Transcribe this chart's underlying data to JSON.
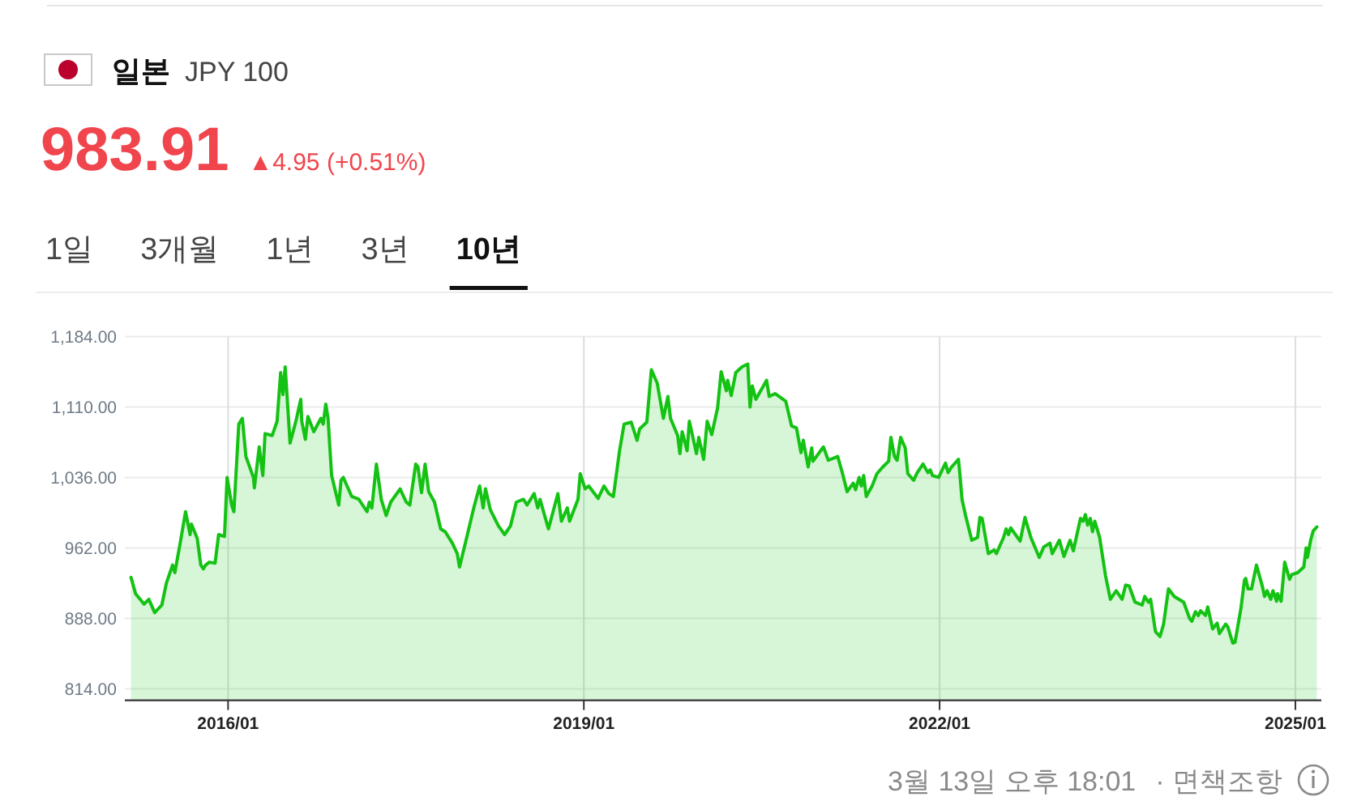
{
  "chart_data": {
    "type": "area",
    "title": "일본",
    "subtitle": "JPY 100",
    "annotations": [
      "983.91",
      "▲4.95 (+0.51%)",
      "1일",
      "3개월",
      "1년",
      "3년",
      "10년",
      "3월 13일 오후 18:01",
      "· 면책조항"
    ],
    "x": [
      "2015-03-08",
      "2015-03-22",
      "2015-04-17",
      "2015-05-02",
      "2015-05-20",
      "2015-06-11",
      "2015-06-25",
      "2015-07-14",
      "2015-07-21",
      "2015-08-08",
      "2015-08-23",
      "2015-09-06",
      "2015-09-10",
      "2015-09-28",
      "2015-10-09",
      "2015-10-17",
      "2015-10-24",
      "2015-11-04",
      "2015-11-22",
      "2015-12-03",
      "2015-12-21",
      "2015-12-29",
      "2016-01-12",
      "2016-01-19",
      "2016-02-03",
      "2016-02-14",
      "2016-02-25",
      "2016-03-19",
      "2016-03-22",
      "2016-04-06",
      "2016-04-17",
      "2016-04-24",
      "2016-05-16",
      "2016-05-31",
      "2016-06-11",
      "2016-06-18",
      "2016-06-25",
      "2016-07-10",
      "2016-07-28",
      "2016-08-12",
      "2016-08-15",
      "2016-08-26",
      "2016-09-03",
      "2016-09-21",
      "2016-10-13",
      "2016-10-20",
      "2016-10-28",
      "2016-11-04",
      "2016-11-15",
      "2016-12-07",
      "2016-12-14",
      "2016-12-21",
      "2017-01-16",
      "2017-02-07",
      "2017-03-04",
      "2017-03-11",
      "2017-03-19",
      "2017-04-02",
      "2017-04-17",
      "2017-05-02",
      "2017-05-16",
      "2017-06-14",
      "2017-07-03",
      "2017-07-14",
      "2017-08-01",
      "2017-08-08",
      "2017-08-19",
      "2017-08-30",
      "2017-09-10",
      "2017-09-28",
      "2017-10-17",
      "2017-10-31",
      "2017-11-22",
      "2017-12-07",
      "2017-12-14",
      "2018-01-01",
      "2018-01-27",
      "2018-02-14",
      "2018-02-25",
      "2018-03-04",
      "2018-03-19",
      "2018-04-13",
      "2018-05-02",
      "2018-05-20",
      "2018-06-07",
      "2018-06-29",
      "2018-07-10",
      "2018-08-01",
      "2018-08-12",
      "2018-08-19",
      "2018-09-14",
      "2018-10-13",
      "2018-10-24",
      "2018-11-11",
      "2018-11-18",
      "2018-12-14",
      "2018-12-21",
      "2019-01-05",
      "2019-01-16",
      "2019-02-14",
      "2019-03-04",
      "2019-03-19",
      "2019-04-02",
      "2019-04-21",
      "2019-05-05",
      "2019-05-27",
      "2019-06-14",
      "2019-06-22",
      "2019-07-14",
      "2019-07-28",
      "2019-08-15",
      "2019-09-03",
      "2019-09-17",
      "2019-09-25",
      "2019-10-17",
      "2019-10-24",
      "2019-10-31",
      "2019-11-15",
      "2019-11-22",
      "2019-12-14",
      "2019-12-21",
      "2020-01-05",
      "2020-01-16",
      "2020-01-30",
      "2020-02-17",
      "2020-02-28",
      "2020-03-15",
      "2020-03-19",
      "2020-03-30",
      "2020-04-13",
      "2020-05-02",
      "2020-05-20",
      "2020-05-27",
      "2020-06-03",
      "2020-06-14",
      "2020-07-17",
      "2020-07-25",
      "2020-08-12",
      "2020-09-14",
      "2020-10-02",
      "2020-10-17",
      "2020-10-31",
      "2020-11-07",
      "2020-11-22",
      "2020-12-03",
      "2020-12-07",
      "2021-01-08",
      "2021-01-23",
      "2021-02-21",
      "2021-03-08",
      "2021-03-22",
      "2021-04-10",
      "2021-04-17",
      "2021-04-28",
      "2021-05-05",
      "2021-05-12",
      "2021-05-20",
      "2021-06-07",
      "2021-06-22",
      "2021-07-10",
      "2021-07-28",
      "2021-08-04",
      "2021-08-15",
      "2021-08-23",
      "2021-09-03",
      "2021-09-17",
      "2021-09-25",
      "2021-10-13",
      "2021-10-24",
      "2021-11-11",
      "2021-11-26",
      "2021-12-03",
      "2021-12-10",
      "2021-12-29",
      "2022-01-19",
      "2022-01-27",
      "2022-02-07",
      "2022-02-28",
      "2022-03-04",
      "2022-03-11",
      "2022-03-22",
      "2022-04-10",
      "2022-04-28",
      "2022-05-05",
      "2022-05-12",
      "2022-05-31",
      "2022-06-18",
      "2022-06-25",
      "2022-07-17",
      "2022-07-25",
      "2022-08-01",
      "2022-08-08",
      "2022-09-06",
      "2022-09-21",
      "2022-10-09",
      "2022-11-04",
      "2022-11-18",
      "2022-12-07",
      "2022-12-14",
      "2023-01-05",
      "2023-01-19",
      "2023-02-07",
      "2023-02-17",
      "2023-03-11",
      "2023-03-19",
      "2023-03-26",
      "2023-04-02",
      "2023-04-10",
      "2023-04-17",
      "2023-04-24",
      "2023-05-09",
      "2023-05-27",
      "2023-06-11",
      "2023-06-29",
      "2023-07-17",
      "2023-07-28",
      "2023-08-08",
      "2023-08-26",
      "2023-09-17",
      "2023-09-25",
      "2023-10-06",
      "2023-10-13",
      "2023-10-28",
      "2023-11-11",
      "2023-11-22",
      "2023-12-07",
      "2023-12-25",
      "2024-01-23",
      "2024-02-10",
      "2024-02-17",
      "2024-02-28",
      "2024-03-08",
      "2024-03-15",
      "2024-03-30",
      "2024-04-06",
      "2024-04-21",
      "2024-05-05",
      "2024-05-12",
      "2024-05-31",
      "2024-06-07",
      "2024-06-22",
      "2024-06-29",
      "2024-07-17",
      "2024-07-28",
      "2024-08-01",
      "2024-08-08",
      "2024-08-19",
      "2024-09-03",
      "2024-09-21",
      "2024-09-28",
      "2024-10-06",
      "2024-10-17",
      "2024-10-24",
      "2024-11-04",
      "2024-11-07",
      "2024-11-18",
      "2024-11-29",
      "2024-12-14",
      "2024-12-21",
      "2025-01-08",
      "2025-01-27",
      "2025-02-03",
      "2025-02-07",
      "2025-02-17",
      "2025-02-25",
      "2025-03-08"
    ],
    "series": [
      {
        "color": "#14c214",
        "values": [
          931,
          914,
          903,
          908,
          894,
          902,
          925,
          944,
          936,
          970,
          1000,
          976,
          987,
          972,
          944,
          940,
          944,
          947,
          946,
          976,
          974,
          1036,
          1007,
          1000,
          1092,
          1098,
          1058,
          1036,
          1025,
          1068,
          1038,
          1082,
          1080,
          1095,
          1146,
          1123,
          1152,
          1072,
          1095,
          1118,
          1095,
          1076,
          1100,
          1084,
          1098,
          1092,
          1113,
          1098,
          1038,
          1007,
          1033,
          1036,
          1016,
          1013,
          1000,
          1010,
          1004,
          1050,
          1013,
          996,
          1010,
          1024,
          1010,
          1007,
          1050,
          1047,
          1020,
          1050,
          1021,
          1010,
          982,
          979,
          967,
          956,
          942,
          967,
          1004,
          1027,
          1004,
          1024,
          1002,
          985,
          976,
          985,
          1010,
          1013,
          1007,
          1019,
          1004,
          1013,
          982,
          1019,
          990,
          1004,
          990,
          1013,
          1040,
          1024,
          1027,
          1014,
          1027,
          1019,
          1016,
          1064,
          1092,
          1094,
          1075,
          1087,
          1094,
          1149,
          1135,
          1098,
          1121,
          1098,
          1080,
          1061,
          1084,
          1064,
          1095,
          1061,
          1078,
          1055,
          1095,
          1081,
          1109,
          1147,
          1127,
          1138,
          1122,
          1146,
          1152,
          1155,
          1110,
          1132,
          1118,
          1138,
          1121,
          1124,
          1116,
          1090,
          1088,
          1062,
          1075,
          1047,
          1067,
          1053,
          1068,
          1054,
          1058,
          1040,
          1021,
          1030,
          1023,
          1036,
          1027,
          1038,
          1016,
          1027,
          1040,
          1047,
          1053,
          1078,
          1058,
          1054,
          1078,
          1067,
          1040,
          1033,
          1041,
          1050,
          1041,
          1044,
          1038,
          1036,
          1051,
          1041,
          1047,
          1055,
          1041,
          1013,
          996,
          970,
          973,
          994,
          993,
          956,
          960,
          956,
          973,
          982,
          976,
          983,
          969,
          994,
          973,
          952,
          963,
          967,
          956,
          970,
          953,
          970,
          959,
          993,
          990,
          997,
          986,
          993,
          979,
          990,
          973,
          933,
          908,
          917,
          908,
          923,
          922,
          905,
          902,
          911,
          905,
          908,
          874,
          869,
          882,
          919,
          911,
          905,
          888,
          885,
          895,
          891,
          896,
          891,
          900,
          877,
          883,
          872,
          882,
          879,
          862,
          863,
          898,
          928,
          930,
          919,
          919,
          944,
          922,
          911,
          917,
          908,
          917,
          906,
          914,
          906,
          947,
          929,
          934,
          936,
          942,
          962,
          952,
          970,
          980,
          984
        ]
      }
    ],
    "xlim": [
      "2015-02-17",
      "2025-03-22"
    ],
    "ylim": [
      802,
      1184
    ],
    "xticks": [
      {
        "value": "2016-01",
        "label": "2016/01"
      },
      {
        "value": "2019-01",
        "label": "2019/01"
      },
      {
        "value": "2022-01",
        "label": "2022/01"
      },
      {
        "value": "2025-01",
        "label": "2025/01"
      }
    ],
    "yticks": [
      {
        "value": 814,
        "label": "814.00"
      },
      {
        "value": 888,
        "label": "888.00"
      },
      {
        "value": 962,
        "label": "962.00"
      },
      {
        "value": 1036,
        "label": "1,036.00"
      },
      {
        "value": 1110,
        "label": "1,110.00"
      },
      {
        "value": 1184,
        "label": "1,184.00"
      }
    ],
    "grid": true
  }
}
